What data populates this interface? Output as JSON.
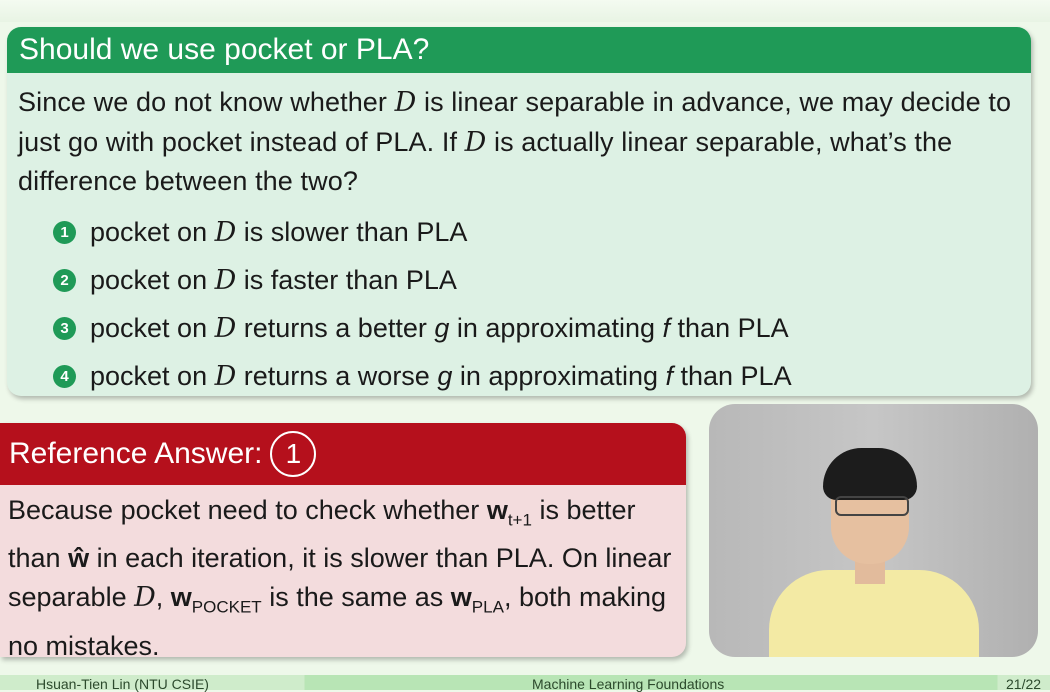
{
  "quiz": {
    "title": "Should we use pocket or PLA?",
    "para": [
      {
        "t": "Since we do not know whether "
      },
      {
        "m": "D"
      },
      {
        "t": " is linear separable in advance, we may decide to just go with pocket instead of PLA. If "
      },
      {
        "m": "D"
      },
      {
        "t": " is actually linear separable, what’s the difference between the two?"
      }
    ],
    "options": [
      {
        "num": "1",
        "parts": [
          {
            "t": "pocket on "
          },
          {
            "m": "D"
          },
          {
            "t": " is slower than PLA"
          }
        ]
      },
      {
        "num": "2",
        "parts": [
          {
            "t": "pocket on "
          },
          {
            "m": "D"
          },
          {
            "t": " is faster than PLA"
          }
        ]
      },
      {
        "num": "3",
        "parts": [
          {
            "t": "pocket on "
          },
          {
            "m": "D"
          },
          {
            "t": " returns a better "
          },
          {
            "i": "g"
          },
          {
            "t": " in approximating "
          },
          {
            "i": "f"
          },
          {
            "t": " than PLA"
          }
        ]
      },
      {
        "num": "4",
        "parts": [
          {
            "t": "pocket on "
          },
          {
            "m": "D"
          },
          {
            "t": " returns a worse "
          },
          {
            "i": "g"
          },
          {
            "t": " in approximating "
          },
          {
            "i": "f"
          },
          {
            "t": " than PLA"
          }
        ]
      }
    ]
  },
  "answer": {
    "label": "Reference Answer:",
    "choice": "1",
    "body": [
      {
        "t": "Because pocket need to check whether "
      },
      {
        "b": "w"
      },
      {
        "sub": "t+1"
      },
      {
        "t": " is better than "
      },
      {
        "b": "ŵ"
      },
      {
        "t": " in each iteration, it is slower than PLA. On linear separable "
      },
      {
        "m": "D"
      },
      {
        "t": ", "
      },
      {
        "b": "w"
      },
      {
        "sub": "POCKET"
      },
      {
        "t": " is the same as "
      },
      {
        "b": "w"
      },
      {
        "sub": "PLA"
      },
      {
        "t": ", both making no mistakes."
      }
    ]
  },
  "footer": {
    "author": "Hsuan-Tien Lin (NTU CSIE)",
    "course": "Machine Learning Foundations",
    "page": "21/22"
  }
}
